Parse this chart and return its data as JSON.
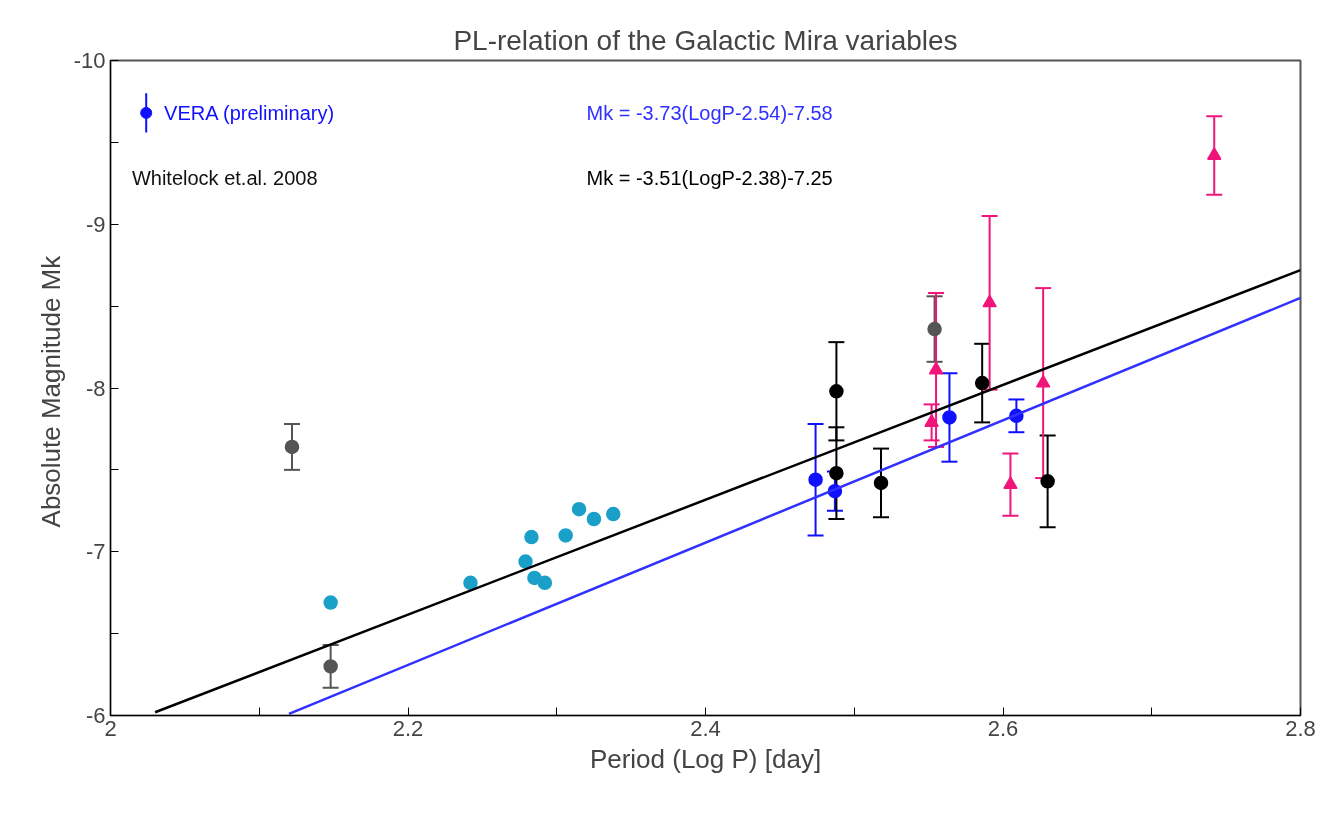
{
  "chart_data": {
    "type": "scatter",
    "title": "PL-relation of the Galactic Mira variables",
    "xlabel": "Period (Log P) [day]",
    "ylabel": "Absolute Magnitude  Mk",
    "xlim": [
      2,
      2.8
    ],
    "ylim": [
      -6,
      -10
    ],
    "xticks": [
      2,
      {
        "value": 2.1,
        "label": null
      },
      2.2,
      {
        "value": 2.3,
        "label": null
      },
      2.4,
      {
        "value": 2.5,
        "label": null
      },
      2.6,
      {
        "value": 2.7,
        "label": null
      },
      2.8
    ],
    "yticks": [
      -6,
      {
        "value": -6.5,
        "label": null
      },
      -7,
      {
        "value": -7.5,
        "label": null
      },
      -8,
      {
        "value": -8.5,
        "label": null
      },
      -9,
      {
        "value": -9.5,
        "label": null
      },
      -10
    ],
    "grid": false,
    "legend": "top left",
    "series": [
      {
        "name": "VERA (preliminary)",
        "color": "#1010ff",
        "marker": "circle",
        "x": [
          2.474,
          2.487,
          2.564,
          2.609
        ],
        "values": [
          -7.44,
          -7.37,
          -7.82,
          -7.83
        ],
        "errors": [
          0.34,
          0.12,
          0.27,
          0.1
        ]
      },
      {
        "color": "#1aa0c8",
        "marker": "circle",
        "x": [
          2.148,
          2.242,
          2.279,
          2.283,
          2.285,
          2.292,
          2.306,
          2.315,
          2.325,
          2.338
        ],
        "values": [
          -6.69,
          -6.81,
          -6.94,
          -7.09,
          -6.84,
          -6.81,
          -7.1,
          -7.26,
          -7.2,
          -7.23
        ]
      },
      {
        "color": "#000000",
        "marker": "circle",
        "x": [
          2.488,
          2.488,
          2.518,
          2.586,
          2.63
        ],
        "values": [
          -7.98,
          -7.48,
          -7.42,
          -8.03,
          -7.43
        ],
        "errors": [
          0.3,
          0.28,
          0.21,
          0.24,
          0.28
        ]
      },
      {
        "color": "#555555",
        "marker": "circle",
        "x": [
          2.122,
          2.148,
          2.554
        ],
        "values": [
          -7.64,
          -6.3,
          -8.36
        ],
        "errors": [
          0.14,
          0.13,
          0.2
        ]
      },
      {
        "color": "#f0157a",
        "marker": "triangle",
        "x": [
          2.552,
          2.555,
          2.591,
          2.605,
          2.627,
          2.742
        ],
        "values": [
          -7.79,
          -8.11,
          -8.52,
          -7.41,
          -8.03,
          -9.42
        ],
        "errors": [
          0.11,
          0.47,
          0.53,
          0.19,
          0.58,
          0.24
        ]
      },
      {
        "type": "line",
        "name": "Mk = -3.73(LogP-2.54)-7.58",
        "color": "#3030ff",
        "x": [
          2.12,
          2.8
        ],
        "values": [
          -6.01,
          -8.55
        ]
      },
      {
        "type": "line",
        "name": "Mk = -3.51(LogP-2.38)-7.25",
        "color": "#000000",
        "x": [
          2.03,
          2.8
        ],
        "values": [
          -6.02,
          -8.72
        ]
      }
    ],
    "annotations": [
      "Whitelock et.al. 2008"
    ]
  }
}
